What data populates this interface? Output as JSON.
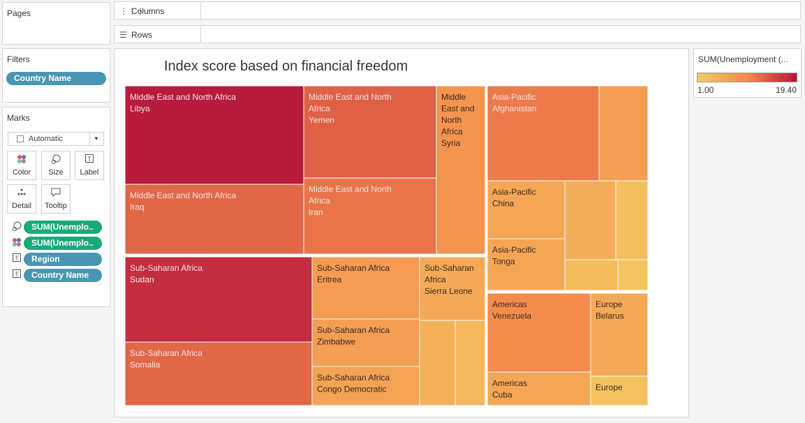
{
  "pages": {
    "title": "Pages"
  },
  "columns": {
    "label": "Columns",
    "icon": "columns-icon"
  },
  "rows": {
    "label": "Rows",
    "icon": "rows-icon"
  },
  "filters": {
    "title": "Filters",
    "pill": "Country Name"
  },
  "marks": {
    "title": "Marks",
    "type_label": "Automatic",
    "buttons": {
      "color": "Color",
      "size": "Size",
      "label": "Label",
      "detail": "Detail",
      "tooltip": "Tooltip"
    },
    "fields": [
      {
        "label": "SUM(Unemplo..",
        "color": "#19a97a",
        "icon": "size-icon"
      },
      {
        "label": "SUM(Unemplo..",
        "color": "#19a97a",
        "icon": "color-icon"
      },
      {
        "label": "Region",
        "color": "#4996b2",
        "icon": "text-label-icon"
      },
      {
        "label": "Country Name",
        "color": "#4996b2",
        "icon": "text-label-icon"
      }
    ]
  },
  "legend": {
    "title": "SUM(Unemployment (...",
    "min_label": "1.00",
    "max_label": "19.40",
    "colors": {
      "low": "#f3cd63",
      "mid": "#f58b4c",
      "high": "#b5163b"
    }
  },
  "chart_data": {
    "type": "treemap",
    "title": "Index score based on financial freedom",
    "size_measure": "SUM(Unemployment)",
    "color_measure": "SUM(Unemployment)",
    "color_range": [
      1.0,
      19.4
    ],
    "cells": [
      {
        "region": "Middle East and North Africa",
        "country": "Libya",
        "color_value": 19.0,
        "labeled": true
      },
      {
        "region": "Middle East and North Africa",
        "country": "Iraq",
        "color_value": 13.0,
        "labeled": true
      },
      {
        "region": "Middle East and North Africa",
        "country": "Yemen",
        "color_value": 13.5,
        "labeled": true
      },
      {
        "region": "Middle East and North Africa",
        "country": "Iran",
        "color_value": 12.0,
        "labeled": true
      },
      {
        "region": "Middle East and North Africa",
        "country": "Syria",
        "color_value": 9.0,
        "labeled": true
      },
      {
        "region": "Sub-Saharan Africa",
        "country": "Sudan",
        "color_value": 17.5,
        "labeled": true
      },
      {
        "region": "Sub-Saharan Africa",
        "country": "Somalia",
        "color_value": 13.0,
        "labeled": true
      },
      {
        "region": "Sub-Saharan Africa",
        "country": "Eritrea",
        "color_value": 8.0,
        "labeled": true
      },
      {
        "region": "Sub-Saharan Africa",
        "country": "Zimbabwe",
        "color_value": 7.5,
        "labeled": true
      },
      {
        "region": "Sub-Saharan Africa",
        "country": "Congo Democratic",
        "color_value": 7.0,
        "labeled": true
      },
      {
        "region": "Sub-Saharan Africa",
        "country": "Sierra Leone",
        "color_value": 6.0,
        "labeled": true
      },
      {
        "region": "Sub-Saharan Africa",
        "country": "",
        "color_value": 5.0,
        "labeled": false
      },
      {
        "region": "Sub-Saharan Africa",
        "country": "",
        "color_value": 4.0,
        "labeled": false
      },
      {
        "region": "Asia-Pacific",
        "country": "Afghanistan",
        "color_value": 11.5,
        "labeled": true
      },
      {
        "region": "Asia-Pacific",
        "country": "",
        "color_value": 7.5,
        "labeled": false
      },
      {
        "region": "Asia-Pacific",
        "country": "China",
        "color_value": 6.5,
        "labeled": true
      },
      {
        "region": "Asia-Pacific",
        "country": "Tonga",
        "color_value": 6.5,
        "labeled": true
      },
      {
        "region": "Asia-Pacific",
        "country": "",
        "color_value": 5.5,
        "labeled": false
      },
      {
        "region": "Asia-Pacific",
        "country": "",
        "color_value": 3.0,
        "labeled": false
      },
      {
        "region": "Asia-Pacific",
        "country": "",
        "color_value": 3.5,
        "labeled": false
      },
      {
        "region": "Asia-Pacific",
        "country": "",
        "color_value": 2.0,
        "labeled": false
      },
      {
        "region": "Americas",
        "country": "Venezuela",
        "color_value": 10.0,
        "labeled": true
      },
      {
        "region": "Americas",
        "country": "Cuba",
        "color_value": 6.5,
        "labeled": true
      },
      {
        "region": "Europe",
        "country": "Belarus",
        "color_value": 6.0,
        "labeled": true
      },
      {
        "region": "Europe",
        "country": "",
        "color_value": 2.5,
        "labeled": true
      }
    ]
  }
}
